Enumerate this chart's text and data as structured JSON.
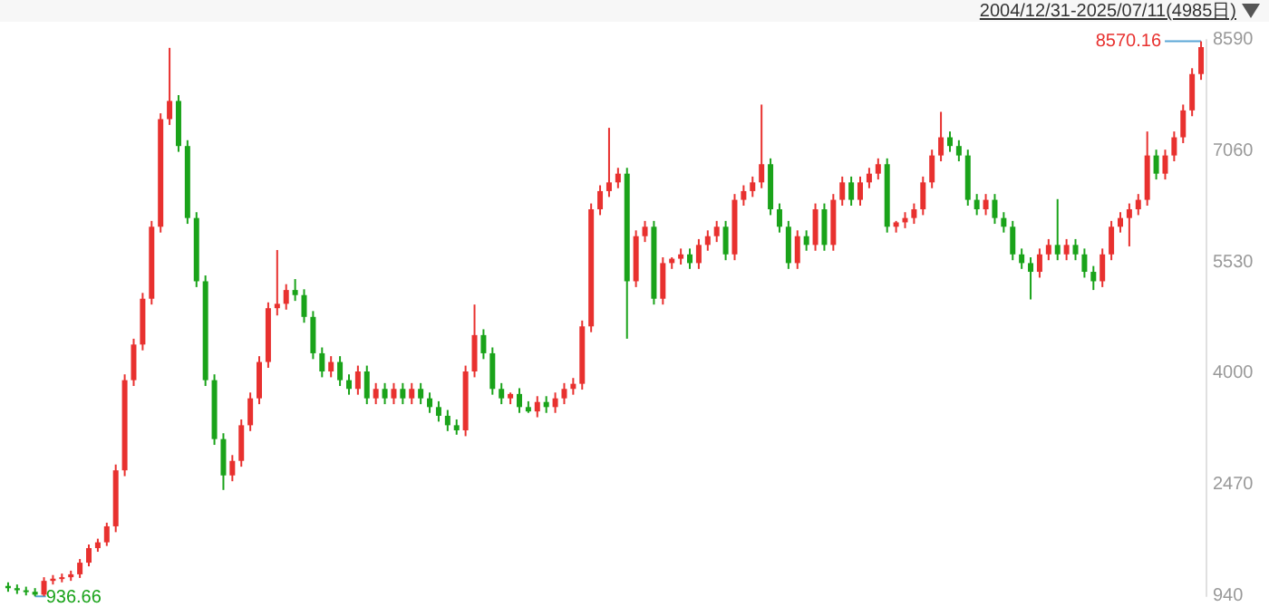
{
  "chart_data": {
    "type": "candlestick",
    "categories": [
      null,
      null,
      null,
      null,
      null,
      null,
      null,
      null,
      null,
      null,
      null,
      null,
      null,
      null,
      null,
      null,
      null,
      null,
      null,
      null,
      null,
      null,
      null,
      null,
      null,
      null,
      null,
      null,
      null,
      null,
      null,
      null,
      null,
      null,
      null,
      null,
      null,
      null,
      null,
      null,
      null,
      null,
      null,
      null,
      null,
      null,
      null,
      null,
      null,
      null,
      null,
      null,
      null,
      null,
      null,
      null,
      null,
      null,
      null,
      null,
      null,
      null,
      null,
      null,
      null,
      null,
      null,
      null,
      null,
      null,
      null,
      null,
      null,
      null,
      null,
      null,
      null,
      null,
      null,
      null,
      null,
      null,
      null,
      null,
      null,
      null,
      null,
      null,
      null,
      null,
      null,
      null,
      null,
      null,
      null,
      null,
      null,
      null,
      null,
      null,
      null,
      null,
      null,
      null,
      null,
      null,
      null,
      null,
      null,
      null,
      null,
      null,
      null,
      null,
      null,
      null,
      null,
      null,
      null,
      null,
      null,
      null,
      null,
      null,
      null,
      null,
      null,
      null,
      null,
      null,
      null,
      null,
      null,
      null
    ],
    "ohlc": [
      [
        1080,
        1130,
        1000,
        1050
      ],
      [
        1050,
        1100,
        970,
        1020
      ],
      [
        1020,
        1070,
        950,
        1000
      ],
      [
        1000,
        1050,
        936.66,
        960
      ],
      [
        960,
        1200,
        940,
        1150
      ],
      [
        1150,
        1230,
        1100,
        1180
      ],
      [
        1180,
        1250,
        1130,
        1200
      ],
      [
        1200,
        1290,
        1150,
        1240
      ],
      [
        1240,
        1450,
        1190,
        1400
      ],
      [
        1400,
        1650,
        1350,
        1600
      ],
      [
        1600,
        1730,
        1550,
        1680
      ],
      [
        1680,
        1950,
        1630,
        1900
      ],
      [
        1900,
        2750,
        1820,
        2670
      ],
      [
        2670,
        3990,
        2590,
        3910
      ],
      [
        3910,
        4480,
        3830,
        4400
      ],
      [
        4400,
        5110,
        4320,
        5030
      ],
      [
        5030,
        6100,
        4950,
        6020
      ],
      [
        6020,
        7580,
        5940,
        7500
      ],
      [
        7500,
        8480,
        7420,
        7750
      ],
      [
        7750,
        7830,
        7050,
        7130
      ],
      [
        7130,
        7210,
        6060,
        6140
      ],
      [
        6140,
        6220,
        5190,
        5270
      ],
      [
        5270,
        5350,
        3830,
        3910
      ],
      [
        3910,
        3990,
        3020,
        3100
      ],
      [
        3100,
        3180,
        2400,
        2600
      ],
      [
        2600,
        2880,
        2520,
        2800
      ],
      [
        2800,
        3370,
        2720,
        3290
      ],
      [
        3290,
        3740,
        3210,
        3660
      ],
      [
        3660,
        4240,
        3580,
        4160
      ],
      [
        4160,
        4980,
        4080,
        4900
      ],
      [
        4900,
        5700,
        4800,
        4960
      ],
      [
        4960,
        5230,
        4880,
        5150
      ],
      [
        5150,
        5300,
        5000,
        5080
      ],
      [
        5080,
        5160,
        4700,
        4780
      ],
      [
        4780,
        4860,
        4200,
        4280
      ],
      [
        4280,
        4360,
        3950,
        4030
      ],
      [
        4030,
        4240,
        3950,
        4160
      ],
      [
        4160,
        4240,
        3830,
        3910
      ],
      [
        3910,
        3990,
        3710,
        3790
      ],
      [
        3790,
        4110,
        3710,
        4030
      ],
      [
        4030,
        4110,
        3580,
        3660
      ],
      [
        3660,
        3870,
        3580,
        3790
      ],
      [
        3790,
        3870,
        3580,
        3660
      ],
      [
        3660,
        3870,
        3580,
        3790
      ],
      [
        3790,
        3870,
        3580,
        3660
      ],
      [
        3660,
        3870,
        3580,
        3790
      ],
      [
        3790,
        3870,
        3580,
        3660
      ],
      [
        3660,
        3740,
        3460,
        3540
      ],
      [
        3540,
        3620,
        3340,
        3420
      ],
      [
        3420,
        3500,
        3210,
        3290
      ],
      [
        3290,
        3370,
        3160,
        3220
      ],
      [
        3220,
        4110,
        3140,
        4030
      ],
      [
        4030,
        4950,
        3950,
        4530
      ],
      [
        4530,
        4610,
        4200,
        4280
      ],
      [
        4280,
        4360,
        3710,
        3790
      ],
      [
        3790,
        3870,
        3580,
        3660
      ],
      [
        3660,
        3740,
        3580,
        3720
      ],
      [
        3720,
        3800,
        3460,
        3540
      ],
      [
        3540,
        3620,
        3460,
        3480
      ],
      [
        3480,
        3690,
        3400,
        3610
      ],
      [
        3610,
        3690,
        3460,
        3540
      ],
      [
        3540,
        3740,
        3460,
        3660
      ],
      [
        3660,
        3870,
        3580,
        3790
      ],
      [
        3790,
        3940,
        3710,
        3860
      ],
      [
        3860,
        4730,
        3780,
        4650
      ],
      [
        4650,
        6340,
        4570,
        6260
      ],
      [
        6260,
        6590,
        6180,
        6510
      ],
      [
        6510,
        7380,
        6430,
        6630
      ],
      [
        6630,
        6830,
        6550,
        6750
      ],
      [
        6750,
        6830,
        4480,
        5270
      ],
      [
        5270,
        5970,
        5190,
        5890
      ],
      [
        5890,
        6100,
        5810,
        6020
      ],
      [
        6020,
        6100,
        4950,
        5030
      ],
      [
        5030,
        5600,
        4950,
        5520
      ],
      [
        5520,
        5600,
        5440,
        5580
      ],
      [
        5580,
        5720,
        5500,
        5640
      ],
      [
        5640,
        5720,
        5440,
        5520
      ],
      [
        5520,
        5850,
        5440,
        5770
      ],
      [
        5770,
        5970,
        5690,
        5890
      ],
      [
        5890,
        6100,
        5810,
        6020
      ],
      [
        6020,
        6100,
        5560,
        5640
      ],
      [
        5640,
        6470,
        5560,
        6390
      ],
      [
        6390,
        6590,
        6310,
        6510
      ],
      [
        6510,
        6710,
        6430,
        6630
      ],
      [
        6630,
        7700,
        6550,
        6880
      ],
      [
        6880,
        6960,
        6180,
        6260
      ],
      [
        6260,
        6340,
        5940,
        6020
      ],
      [
        6020,
        6100,
        5440,
        5520
      ],
      [
        5520,
        5970,
        5440,
        5890
      ],
      [
        5890,
        5970,
        5690,
        5770
      ],
      [
        5770,
        6340,
        5690,
        6260
      ],
      [
        6260,
        6340,
        5690,
        5770
      ],
      [
        5770,
        6470,
        5690,
        6390
      ],
      [
        6390,
        6710,
        6310,
        6630
      ],
      [
        6630,
        6710,
        6310,
        6390
      ],
      [
        6390,
        6710,
        6310,
        6630
      ],
      [
        6630,
        6830,
        6550,
        6750
      ],
      [
        6750,
        6960,
        6670,
        6880
      ],
      [
        6880,
        6960,
        5940,
        6020
      ],
      [
        6020,
        6100,
        5940,
        6080
      ],
      [
        6080,
        6220,
        6000,
        6140
      ],
      [
        6140,
        6340,
        6060,
        6260
      ],
      [
        6260,
        6710,
        6180,
        6630
      ],
      [
        6630,
        7080,
        6550,
        7000
      ],
      [
        7000,
        7600,
        6920,
        7250
      ],
      [
        7250,
        7330,
        7050,
        7130
      ],
      [
        7130,
        7210,
        6920,
        7000
      ],
      [
        7000,
        7080,
        6310,
        6390
      ],
      [
        6390,
        6470,
        6180,
        6260
      ],
      [
        6260,
        6470,
        6180,
        6390
      ],
      [
        6390,
        6470,
        6060,
        6140
      ],
      [
        6140,
        6220,
        5940,
        6020
      ],
      [
        6020,
        6100,
        5560,
        5640
      ],
      [
        5640,
        5720,
        5440,
        5520
      ],
      [
        5520,
        5600,
        5020,
        5400
      ],
      [
        5400,
        5720,
        5320,
        5640
      ],
      [
        5640,
        5850,
        5560,
        5770
      ],
      [
        5770,
        6400,
        5560,
        5640
      ],
      [
        5640,
        5850,
        5560,
        5770
      ],
      [
        5770,
        5850,
        5560,
        5640
      ],
      [
        5640,
        5720,
        5320,
        5400
      ],
      [
        5400,
        5480,
        5150,
        5270
      ],
      [
        5270,
        5720,
        5190,
        5640
      ],
      [
        5640,
        6100,
        5560,
        6020
      ],
      [
        6020,
        6220,
        5940,
        6140
      ],
      [
        6140,
        6340,
        5750,
        6260
      ],
      [
        6260,
        6470,
        6180,
        6390
      ],
      [
        6390,
        7330,
        6310,
        7000
      ],
      [
        7000,
        7080,
        6670,
        6750
      ],
      [
        6750,
        7080,
        6670,
        7000
      ],
      [
        7000,
        7330,
        6920,
        7250
      ],
      [
        7250,
        7700,
        7170,
        7620
      ],
      [
        7620,
        8200,
        7540,
        8120
      ],
      [
        8120,
        8570.16,
        8040,
        8490
      ]
    ],
    "ylim": [
      940,
      8590
    ],
    "yticks": [
      940,
      2470,
      4000,
      5530,
      7060,
      8590
    ],
    "grid": false,
    "annotations": [
      "2004/12/31-2025/07/11(4985日)",
      "8570.16",
      "936.66"
    ]
  }
}
